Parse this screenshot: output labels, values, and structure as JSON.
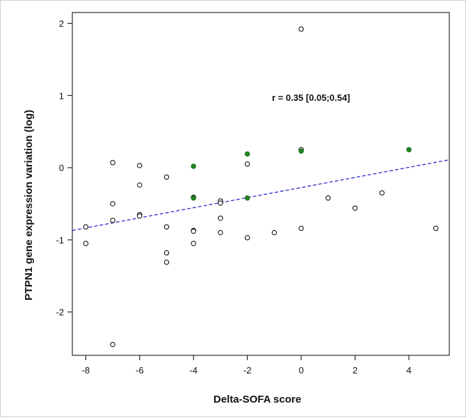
{
  "chart_data": {
    "type": "scatter",
    "title": "",
    "xlabel": "Delta-SOFA score",
    "ylabel": "PTPN1 gene expression variation (log)",
    "xlim": [
      -8.5,
      5.5
    ],
    "ylim": [
      -2.6,
      2.15
    ],
    "x_ticks": [
      -8,
      -6,
      -4,
      -2,
      0,
      2,
      4
    ],
    "y_ticks": [
      -2,
      -1,
      0,
      1,
      2
    ],
    "grid": false,
    "annotation": "r = 0.35 [0.05;0.54]",
    "colors": {
      "open_point": "#000000",
      "filled_point": "#1f8a1f",
      "regression_line": "#2a2acf"
    },
    "regression_line": {
      "x": [
        -8.5,
        5.5
      ],
      "y": [
        -0.87,
        0.11
      ]
    },
    "series": [
      {
        "style": "open",
        "points": [
          [
            0,
            1.92
          ],
          [
            -7,
            0.07
          ],
          [
            -6,
            0.03
          ],
          [
            -6,
            -0.24
          ],
          [
            -5,
            -0.13
          ],
          [
            -2,
            0.05
          ],
          [
            -7,
            -0.5
          ],
          [
            -6,
            -0.65
          ],
          [
            -6,
            -0.67
          ],
          [
            -3,
            -0.46
          ],
          [
            -3,
            -0.49
          ],
          [
            -4,
            -0.41
          ],
          [
            -7,
            -0.73
          ],
          [
            -8,
            -0.82
          ],
          [
            -5,
            -0.82
          ],
          [
            -4,
            -0.87
          ],
          [
            -4,
            -0.88
          ],
          [
            -3,
            -0.7
          ],
          [
            -3,
            -0.9
          ],
          [
            -2,
            -0.97
          ],
          [
            -1,
            -0.9
          ],
          [
            0,
            -0.84
          ],
          [
            0,
            0.25
          ],
          [
            1,
            -0.42
          ],
          [
            2,
            -0.56
          ],
          [
            3,
            -0.35
          ],
          [
            5,
            -0.84
          ],
          [
            -8,
            -1.05
          ],
          [
            -4,
            -1.05
          ],
          [
            -5,
            -1.18
          ],
          [
            -5,
            -1.31
          ],
          [
            -7,
            -2.45
          ]
        ]
      },
      {
        "style": "filled",
        "points": [
          [
            -4,
            0.02
          ],
          [
            -4,
            -0.42
          ],
          [
            -2,
            0.19
          ],
          [
            -2,
            -0.42
          ],
          [
            0,
            0.23
          ],
          [
            4,
            0.25
          ]
        ]
      }
    ]
  }
}
